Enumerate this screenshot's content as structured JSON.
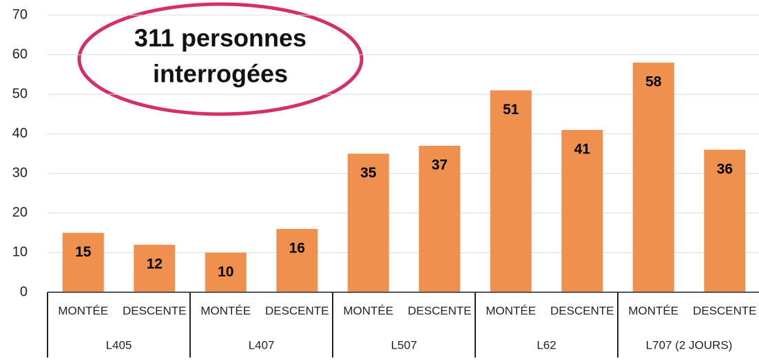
{
  "chart_data": {
    "type": "bar",
    "annotation": [
      "311 personnes",
      "interrogées"
    ],
    "categories": [
      "MONTÉE",
      "DESCENTE",
      "MONTÉE",
      "DESCENTE",
      "MONTÉE",
      "DESCENTE",
      "MONTÉE",
      "DESCENTE",
      "MONTÉE",
      "DESCENTE"
    ],
    "groups": [
      "L405",
      "L407",
      "L507",
      "L62",
      "L707 (2 JOURS)"
    ],
    "values": [
      15,
      12,
      10,
      16,
      35,
      37,
      51,
      41,
      58,
      36
    ],
    "color": "#f0904e",
    "ylim": [
      0,
      70
    ],
    "yticks": [
      0,
      10,
      20,
      30,
      40,
      50,
      60,
      70
    ],
    "grid": true
  }
}
